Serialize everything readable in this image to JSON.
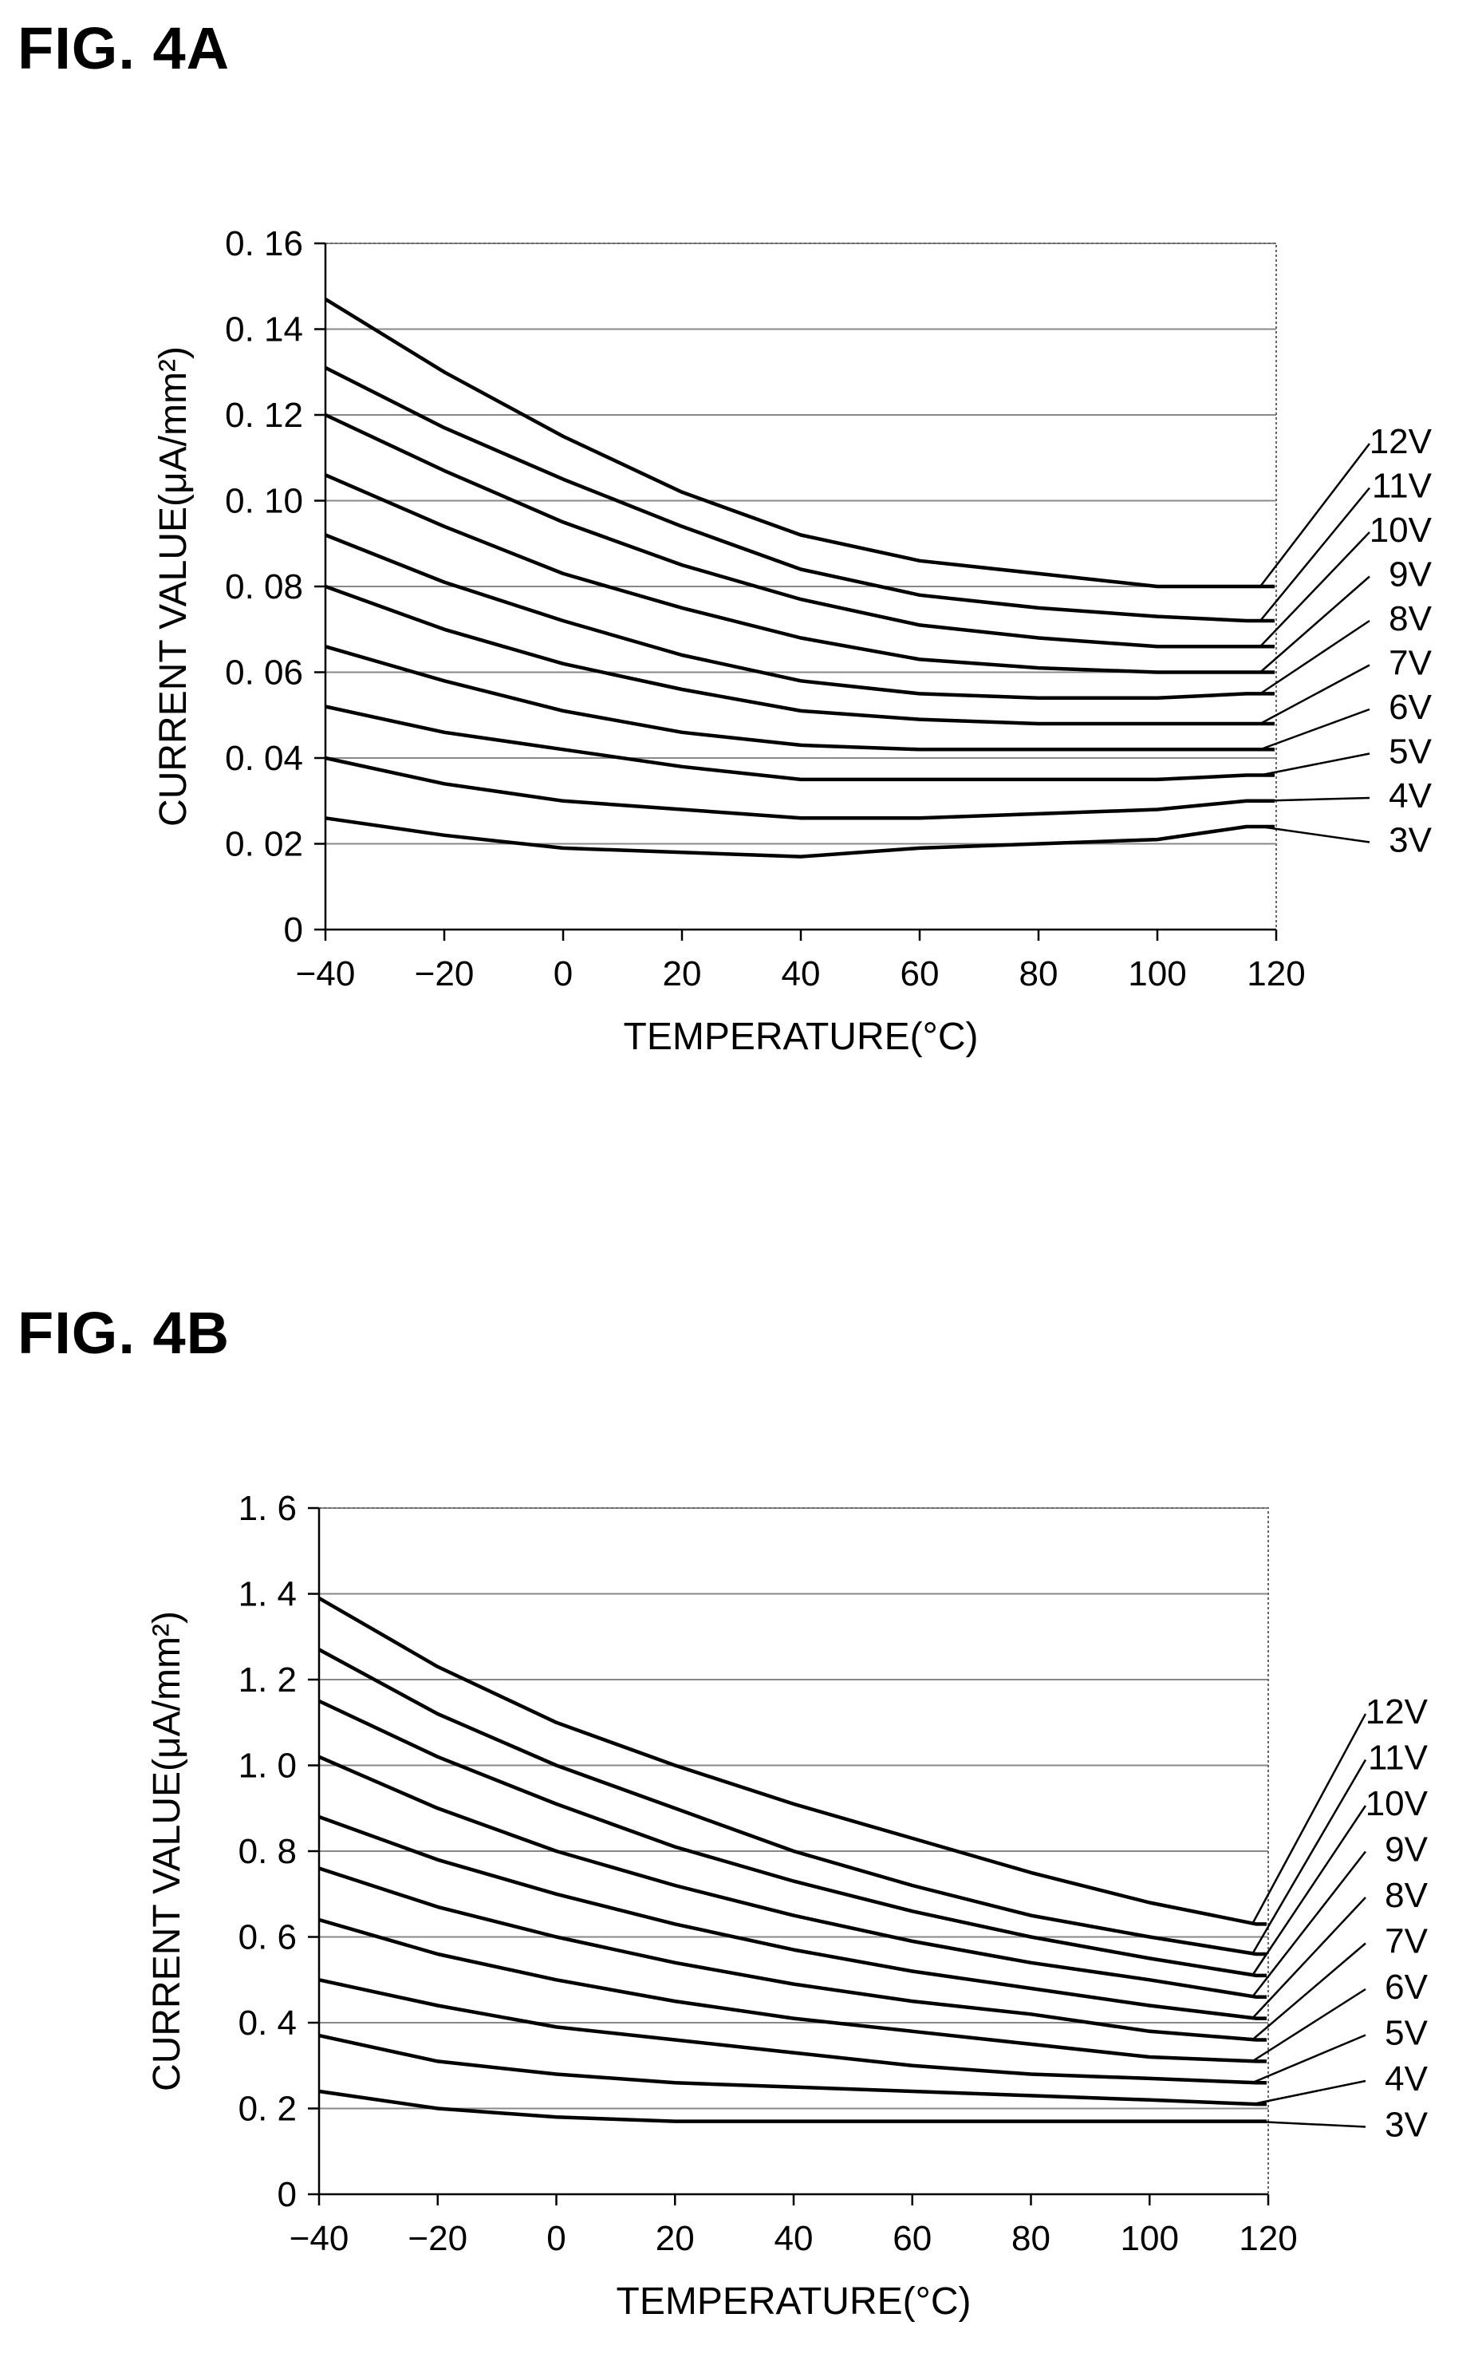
{
  "figures": [
    {
      "label": "FIG. 4A",
      "chart_data": {
        "type": "line",
        "title": "",
        "xlabel": "TEMPERATURE(°C)",
        "ylabel": "CURRENT VALUE(μA/mm²)",
        "xlim": [
          -40,
          120
        ],
        "ylim": [
          0,
          0.16
        ],
        "x_ticks": [
          -40,
          -20,
          0,
          20,
          40,
          60,
          80,
          100,
          120
        ],
        "x_tick_labels": [
          "−40",
          "−20",
          "0",
          "20",
          "40",
          "60",
          "80",
          "100",
          "120"
        ],
        "y_ticks": [
          0,
          0.02,
          0.04,
          0.06,
          0.08,
          0.1,
          0.12,
          0.14,
          0.16
        ],
        "y_tick_labels": [
          "0",
          "0. 02",
          "0. 04",
          "0. 06",
          "0. 08",
          "0. 10",
          "0. 12",
          "0. 14",
          "0. 16"
        ],
        "grid": "horizontal",
        "x": [
          -40,
          -20,
          0,
          20,
          40,
          60,
          80,
          100,
          115
        ],
        "series": [
          {
            "name": "3V",
            "values": [
              0.026,
              0.022,
              0.019,
              0.018,
              0.017,
              0.019,
              0.02,
              0.021,
              0.024
            ]
          },
          {
            "name": "4V",
            "values": [
              0.04,
              0.034,
              0.03,
              0.028,
              0.026,
              0.026,
              0.027,
              0.028,
              0.03
            ]
          },
          {
            "name": "5V",
            "values": [
              0.052,
              0.046,
              0.042,
              0.038,
              0.035,
              0.035,
              0.035,
              0.035,
              0.036
            ]
          },
          {
            "name": "6V",
            "values": [
              0.066,
              0.058,
              0.051,
              0.046,
              0.043,
              0.042,
              0.042,
              0.042,
              0.042
            ]
          },
          {
            "name": "7V",
            "values": [
              0.08,
              0.07,
              0.062,
              0.056,
              0.051,
              0.049,
              0.048,
              0.048,
              0.048
            ]
          },
          {
            "name": "8V",
            "values": [
              0.092,
              0.081,
              0.072,
              0.064,
              0.058,
              0.055,
              0.054,
              0.054,
              0.055
            ]
          },
          {
            "name": "9V",
            "values": [
              0.106,
              0.094,
              0.083,
              0.075,
              0.068,
              0.063,
              0.061,
              0.06,
              0.06
            ]
          },
          {
            "name": "10V",
            "values": [
              0.12,
              0.107,
              0.095,
              0.085,
              0.077,
              0.071,
              0.068,
              0.066,
              0.066
            ]
          },
          {
            "name": "11V",
            "values": [
              0.131,
              0.117,
              0.105,
              0.094,
              0.084,
              0.078,
              0.075,
              0.073,
              0.072
            ]
          },
          {
            "name": "12V",
            "values": [
              0.147,
              0.13,
              0.115,
              0.102,
              0.092,
              0.086,
              0.083,
              0.08,
              0.08
            ]
          }
        ]
      }
    },
    {
      "label": "FIG. 4B",
      "chart_data": {
        "type": "line",
        "title": "",
        "xlabel": "TEMPERATURE(°C)",
        "ylabel": "CURRENT VALUE(μA/mm²)",
        "xlim": [
          -40,
          120
        ],
        "ylim": [
          0,
          1.6
        ],
        "x_ticks": [
          -40,
          -20,
          0,
          20,
          40,
          60,
          80,
          100,
          120
        ],
        "x_tick_labels": [
          "−40",
          "−20",
          "0",
          "20",
          "40",
          "60",
          "80",
          "100",
          "120"
        ],
        "y_ticks": [
          0,
          0.2,
          0.4,
          0.6,
          0.8,
          1.0,
          1.2,
          1.4,
          1.6
        ],
        "y_tick_labels": [
          "0",
          "0. 2",
          "0. 4",
          "0. 6",
          "0. 8",
          "1. 0",
          "1. 2",
          "1. 4",
          "1. 6"
        ],
        "grid": "horizontal",
        "x": [
          -40,
          -20,
          0,
          20,
          40,
          60,
          80,
          100,
          118
        ],
        "series": [
          {
            "name": "3V",
            "values": [
              0.24,
              0.2,
              0.18,
              0.17,
              0.17,
              0.17,
              0.17,
              0.17,
              0.17
            ]
          },
          {
            "name": "4V",
            "values": [
              0.37,
              0.31,
              0.28,
              0.26,
              0.25,
              0.24,
              0.23,
              0.22,
              0.21
            ]
          },
          {
            "name": "5V",
            "values": [
              0.5,
              0.44,
              0.39,
              0.36,
              0.33,
              0.3,
              0.28,
              0.27,
              0.26
            ]
          },
          {
            "name": "6V",
            "values": [
              0.64,
              0.56,
              0.5,
              0.45,
              0.41,
              0.38,
              0.35,
              0.32,
              0.31
            ]
          },
          {
            "name": "7V",
            "values": [
              0.76,
              0.67,
              0.6,
              0.54,
              0.49,
              0.45,
              0.42,
              0.38,
              0.36
            ]
          },
          {
            "name": "8V",
            "values": [
              0.88,
              0.78,
              0.7,
              0.63,
              0.57,
              0.52,
              0.48,
              0.44,
              0.41
            ]
          },
          {
            "name": "9V",
            "values": [
              1.02,
              0.9,
              0.8,
              0.72,
              0.65,
              0.59,
              0.54,
              0.5,
              0.46
            ]
          },
          {
            "name": "10V",
            "values": [
              1.15,
              1.02,
              0.91,
              0.81,
              0.73,
              0.66,
              0.6,
              0.55,
              0.51
            ]
          },
          {
            "name": "11V",
            "values": [
              1.27,
              1.12,
              1.0,
              0.9,
              0.8,
              0.72,
              0.65,
              0.6,
              0.56
            ]
          },
          {
            "name": "12V",
            "values": [
              1.39,
              1.23,
              1.1,
              1.0,
              0.91,
              0.83,
              0.75,
              0.68,
              0.63
            ]
          }
        ]
      }
    }
  ]
}
